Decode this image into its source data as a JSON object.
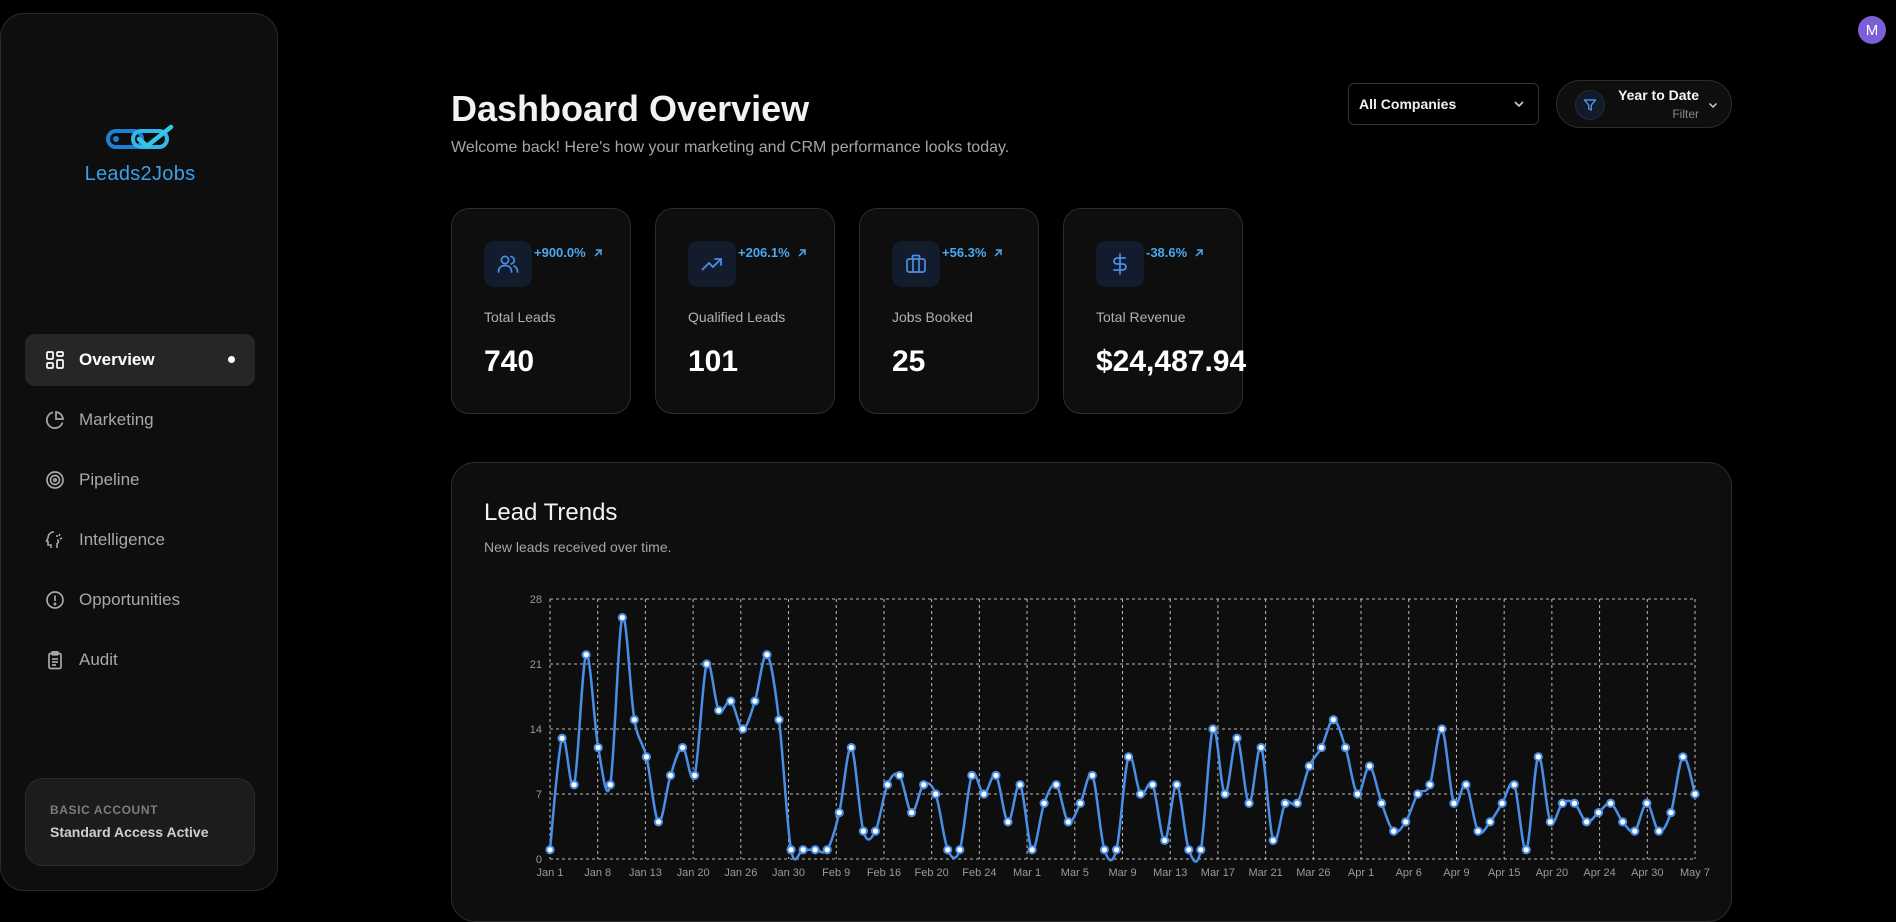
{
  "brand": {
    "name": "Leads2Jobs"
  },
  "sidebar": {
    "items": [
      {
        "label": "Overview",
        "icon": "grid-icon",
        "active": true
      },
      {
        "label": "Marketing",
        "icon": "pie-chart-icon",
        "active": false
      },
      {
        "label": "Pipeline",
        "icon": "target-icon",
        "active": false
      },
      {
        "label": "Intelligence",
        "icon": "brain-icon",
        "active": false
      },
      {
        "label": "Opportunities",
        "icon": "alert-circle-icon",
        "active": false
      },
      {
        "label": "Audit",
        "icon": "clipboard-icon",
        "active": false
      }
    ],
    "account": {
      "type": "BASIC ACCOUNT",
      "status": "Standard Access Active"
    }
  },
  "user": {
    "initial": "M"
  },
  "header": {
    "title": "Dashboard Overview",
    "subtitle": "Welcome back! Here's how your marketing and CRM performance looks today.",
    "company_select": "All Companies",
    "date_filter": {
      "label": "Year to Date",
      "sublabel": "Filter"
    }
  },
  "metrics": [
    {
      "label": "Total Leads",
      "value": "740",
      "change": "+900.0%",
      "icon": "users-icon"
    },
    {
      "label": "Qualified Leads",
      "value": "101",
      "change": "+206.1%",
      "icon": "trending-up-icon"
    },
    {
      "label": "Jobs Booked",
      "value": "25",
      "change": "+56.3%",
      "icon": "briefcase-icon"
    },
    {
      "label": "Total Revenue",
      "value": "$24,487.94",
      "change": "-38.6%",
      "icon": "dollar-icon"
    }
  ],
  "colors": {
    "accent": "#4aa8f0",
    "line": "#4a8fe6",
    "avatar": "#7c5fd6"
  },
  "lead_trends": {
    "title": "Lead Trends",
    "subtitle": "New leads received over time.",
    "chart_data": {
      "type": "line",
      "ylim": [
        0,
        28
      ],
      "yticks": [
        0,
        7,
        14,
        21,
        28
      ],
      "grid": true,
      "xticks": [
        "Jan 1",
        "Jan 8",
        "Jan 13",
        "Jan 20",
        "Jan 26",
        "Jan 30",
        "Feb 9",
        "Feb 16",
        "Feb 20",
        "Feb 24",
        "Mar 1",
        "Mar 5",
        "Mar 9",
        "Mar 13",
        "Mar 17",
        "Mar 21",
        "Mar 26",
        "Apr 1",
        "Apr 6",
        "Apr 9",
        "Apr 15",
        "Apr 20",
        "Apr 24",
        "Apr 30",
        "May 7"
      ],
      "series": [
        {
          "values": [
            1,
            13,
            8,
            22,
            12,
            8,
            26,
            15,
            11,
            4,
            9,
            12,
            9,
            21,
            16,
            17,
            14,
            17,
            22,
            15,
            1,
            1,
            1,
            1,
            5,
            12,
            3,
            3,
            8,
            9,
            5,
            8,
            7,
            1,
            1,
            9,
            7,
            9,
            4,
            8,
            1,
            6,
            8,
            4,
            6,
            9,
            1,
            1,
            11,
            7,
            8,
            2,
            8,
            1,
            1,
            14,
            7,
            13,
            6,
            12,
            2,
            6,
            6,
            10,
            12,
            15,
            12,
            7,
            10,
            6,
            3,
            4,
            7,
            8,
            14,
            6,
            8,
            3,
            4,
            6,
            8,
            1,
            11,
            4,
            6,
            6,
            4,
            5,
            6,
            4,
            3,
            6,
            3,
            5,
            11,
            7
          ]
        }
      ]
    }
  }
}
